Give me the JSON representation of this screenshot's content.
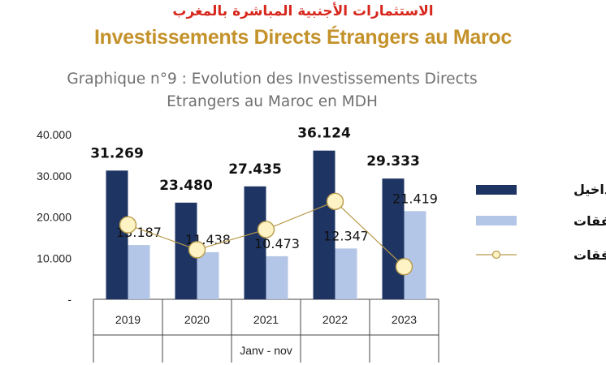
{
  "header": {
    "title_ar": "الاستثمارات الأجنبية المباشرة بالمغرب",
    "title_fr": "Investissements Directs Étrangers au Maroc",
    "subtitle_line1": "Graphique n°9 : Evolution des Investissements Directs",
    "subtitle_line2": "Etrangers au Maroc en MDH"
  },
  "colors": {
    "dark_bar": "#1e3463",
    "light_bar": "#b4c6e7",
    "line": "#b89a4a",
    "marker_fill": "#fdf3c4",
    "axis": "#444444"
  },
  "chart_data": {
    "type": "bar",
    "categories": [
      "2019",
      "2020",
      "2021",
      "2022",
      "2023"
    ],
    "period_label": "Janv - nov",
    "ylim": [
      0,
      40000
    ],
    "y_ticks": [
      "-",
      "10.000",
      "20.000",
      "30.000",
      "40.000"
    ],
    "y_tick_values": [
      0,
      10000,
      20000,
      30000,
      40000
    ],
    "grid": false,
    "legend_position": "right",
    "series": [
      {
        "name": "المداخيل",
        "kind": "bar",
        "values": [
          31269,
          23480,
          27435,
          36124,
          29333
        ],
        "labels": [
          "31.269",
          "23.480",
          "27.435",
          "36.124",
          "29.333"
        ]
      },
      {
        "name": "النفقات",
        "kind": "bar",
        "values": [
          13187,
          11438,
          10473,
          12347,
          21419
        ],
        "labels": [
          "13.187",
          "11.438",
          "10.473",
          "12.347",
          "21.419"
        ]
      },
      {
        "name": "التدفقات",
        "kind": "line",
        "values": [
          18082,
          12042,
          16962,
          23777,
          7914
        ]
      }
    ]
  }
}
